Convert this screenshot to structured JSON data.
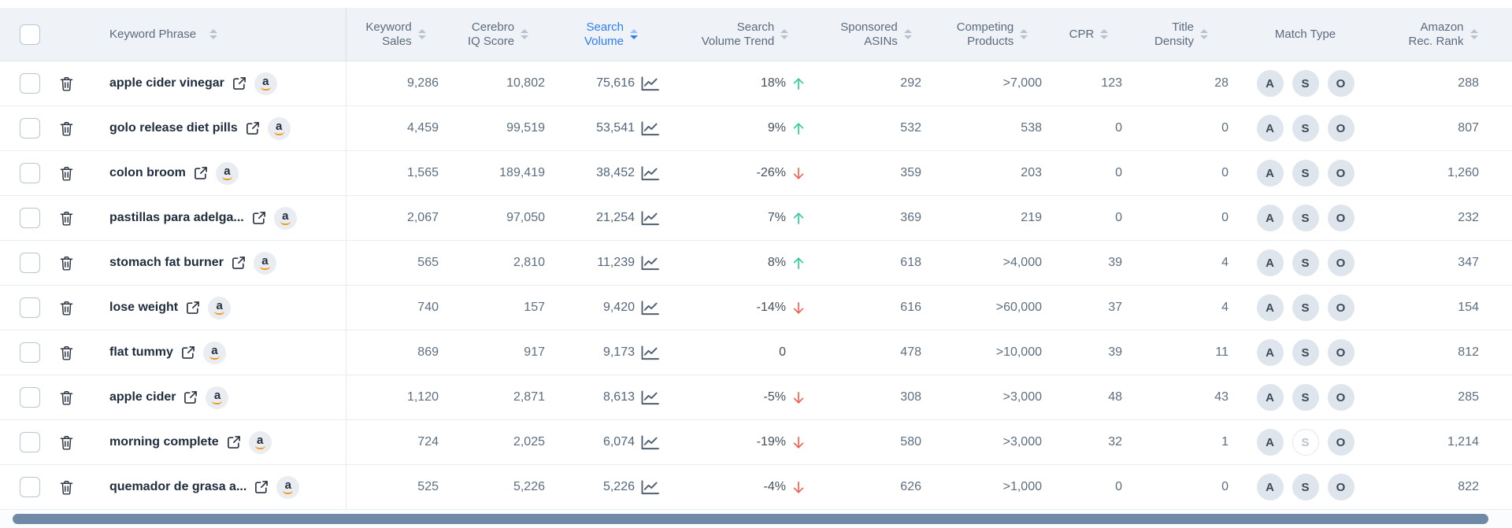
{
  "table": {
    "headers": {
      "phrase": {
        "l1": "Keyword Phrase",
        "l2": ""
      },
      "sales": {
        "l1": "Keyword",
        "l2": "Sales"
      },
      "iq": {
        "l1": "Cerebro",
        "l2": "IQ Score"
      },
      "volume": {
        "l1": "Search",
        "l2": "Volume"
      },
      "trend": {
        "l1": "Search",
        "l2": "Volume Trend"
      },
      "sponsored": {
        "l1": "Sponsored",
        "l2": "ASINs"
      },
      "competing": {
        "l1": "Competing",
        "l2": "Products"
      },
      "cpr": {
        "l1": "CPR",
        "l2": ""
      },
      "density": {
        "l1": "Title",
        "l2": "Density"
      },
      "match": {
        "l1": "Match Type",
        "l2": ""
      },
      "rank": {
        "l1": "Amazon",
        "l2": "Rec. Rank"
      }
    },
    "sorted_column": "volume",
    "sort_direction": "descending",
    "match_labels": [
      "A",
      "S",
      "O"
    ],
    "rows": [
      {
        "phrase": "apple cider vinegar",
        "sales": "9,286",
        "iq": "10,802",
        "volume": "75,616",
        "trend": "18%",
        "trend_dir": "up",
        "sponsored": "292",
        "competing": ">7,000",
        "cpr": "123",
        "density": "28",
        "match": {
          "a": true,
          "s": true,
          "o": true
        },
        "rank": "288"
      },
      {
        "phrase": "golo release diet pills",
        "sales": "4,459",
        "iq": "99,519",
        "volume": "53,541",
        "trend": "9%",
        "trend_dir": "up",
        "sponsored": "532",
        "competing": "538",
        "cpr": "0",
        "density": "0",
        "match": {
          "a": true,
          "s": true,
          "o": true
        },
        "rank": "807"
      },
      {
        "phrase": "colon broom",
        "sales": "1,565",
        "iq": "189,419",
        "volume": "38,452",
        "trend": "-26%",
        "trend_dir": "down",
        "sponsored": "359",
        "competing": "203",
        "cpr": "0",
        "density": "0",
        "match": {
          "a": true,
          "s": true,
          "o": true
        },
        "rank": "1,260"
      },
      {
        "phrase": "pastillas para adelga...",
        "sales": "2,067",
        "iq": "97,050",
        "volume": "21,254",
        "trend": "7%",
        "trend_dir": "up",
        "sponsored": "369",
        "competing": "219",
        "cpr": "0",
        "density": "0",
        "match": {
          "a": true,
          "s": true,
          "o": true
        },
        "rank": "232"
      },
      {
        "phrase": "stomach fat burner",
        "sales": "565",
        "iq": "2,810",
        "volume": "11,239",
        "trend": "8%",
        "trend_dir": "up",
        "sponsored": "618",
        "competing": ">4,000",
        "cpr": "39",
        "density": "4",
        "match": {
          "a": true,
          "s": true,
          "o": true
        },
        "rank": "347"
      },
      {
        "phrase": "lose weight",
        "sales": "740",
        "iq": "157",
        "volume": "9,420",
        "trend": "-14%",
        "trend_dir": "down",
        "sponsored": "616",
        "competing": ">60,000",
        "cpr": "37",
        "density": "4",
        "match": {
          "a": true,
          "s": true,
          "o": true
        },
        "rank": "154"
      },
      {
        "phrase": "flat tummy",
        "sales": "869",
        "iq": "917",
        "volume": "9,173",
        "trend": "0",
        "trend_dir": "none",
        "sponsored": "478",
        "competing": ">10,000",
        "cpr": "39",
        "density": "11",
        "match": {
          "a": true,
          "s": true,
          "o": true
        },
        "rank": "812"
      },
      {
        "phrase": "apple cider",
        "sales": "1,120",
        "iq": "2,871",
        "volume": "8,613",
        "trend": "-5%",
        "trend_dir": "down",
        "sponsored": "308",
        "competing": ">3,000",
        "cpr": "48",
        "density": "43",
        "match": {
          "a": true,
          "s": true,
          "o": true
        },
        "rank": "285"
      },
      {
        "phrase": "morning complete",
        "sales": "724",
        "iq": "2,025",
        "volume": "6,074",
        "trend": "-19%",
        "trend_dir": "down",
        "sponsored": "580",
        "competing": ">3,000",
        "cpr": "32",
        "density": "1",
        "match": {
          "a": true,
          "s": false,
          "o": true
        },
        "rank": "1,214"
      },
      {
        "phrase": "quemador de grasa a...",
        "sales": "525",
        "iq": "5,226",
        "volume": "5,226",
        "trend": "-4%",
        "trend_dir": "down",
        "sponsored": "626",
        "competing": ">1,000",
        "cpr": "0",
        "density": "0",
        "match": {
          "a": true,
          "s": true,
          "o": true
        },
        "rank": "822"
      }
    ]
  },
  "icons": {
    "trash": "trash-icon",
    "external_link": "external-link-icon",
    "amazon_badge": "amazon-badge-icon",
    "volume_chart": "volume-history-chart-icon",
    "trend_up": "trend-up-arrow-icon",
    "trend_down": "trend-down-arrow-icon",
    "sort": "sort-arrows-icon"
  },
  "colors": {
    "header_bg": "#eff2f6",
    "sorted_column_accent": "#2e7df6",
    "trend_up_green": "#2dcd9b",
    "trend_down_red": "#f3604d",
    "keyword_text": "#1f2c3d",
    "numeric_text": "#5d6e80",
    "badge_bg": "#dfe5ec",
    "amazon_smile_orange": "#f59a1c",
    "scrollbar_thumb": "#6f89a7"
  }
}
